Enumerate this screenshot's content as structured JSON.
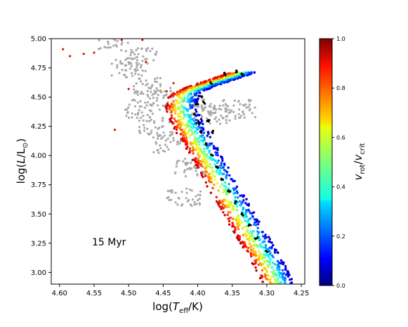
{
  "chart_data": {
    "type": "scatter",
    "title": "",
    "annotation": "15 Myr",
    "xlabel_parts": {
      "prefix": "log(",
      "var": "T",
      "sub": "eff",
      "suffix": "/K)"
    },
    "ylabel_parts": {
      "prefix": "log(",
      "var": "L",
      "slash": "/",
      "L2": "L",
      "sun": "⊙",
      "suffix": ")"
    },
    "colorbar_label_parts": {
      "v1": "v",
      "sub1": "rot",
      "slash": "/",
      "v2": "v",
      "sub2": "crit"
    },
    "x_axis": {
      "reversed": true,
      "lim": [
        4.612,
        4.245
      ],
      "ticks": [
        4.6,
        4.55,
        4.5,
        4.45,
        4.4,
        4.35,
        4.3,
        4.25
      ],
      "tick_labels": [
        "4.60",
        "4.55",
        "4.50",
        "4.45",
        "4.40",
        "4.35",
        "4.30",
        "4.25"
      ]
    },
    "y_axis": {
      "lim": [
        2.9,
        5.0
      ],
      "ticks": [
        3.0,
        3.25,
        3.5,
        3.75,
        4.0,
        4.25,
        4.5,
        4.75,
        5.0
      ],
      "tick_labels": [
        "3.00",
        "3.25",
        "3.50",
        "3.75",
        "4.00",
        "4.25",
        "4.50",
        "4.75",
        "5.00"
      ]
    },
    "colorbar": {
      "range": [
        0.0,
        1.0
      ],
      "ticks": [
        0.0,
        0.2,
        0.4,
        0.6,
        0.8,
        1.0
      ],
      "tick_labels": [
        "0.0",
        "0.2",
        "0.4",
        "0.6",
        "0.8",
        "1.0"
      ],
      "colormap": "jet"
    },
    "series": [
      {
        "role": "main-sequence-band",
        "color_by": "vrot/vcrit",
        "track": [
          [
            4.283,
            2.9
          ],
          [
            4.295,
            3.05
          ],
          [
            4.31,
            3.2
          ],
          [
            4.325,
            3.35
          ],
          [
            4.345,
            3.55
          ],
          [
            4.365,
            3.75
          ],
          [
            4.383,
            3.95
          ],
          [
            4.398,
            4.1
          ],
          [
            4.413,
            4.25
          ],
          [
            4.425,
            4.4
          ],
          [
            4.42,
            4.52
          ],
          [
            4.4,
            4.58
          ],
          [
            4.38,
            4.62
          ],
          [
            4.36,
            4.66
          ],
          [
            4.345,
            4.69
          ],
          [
            4.335,
            4.71
          ]
        ],
        "width_dex": 0.045,
        "vrot_range": [
          0.05,
          0.95
        ]
      },
      {
        "role": "black-track",
        "color": "#000000",
        "points": [
          [
            4.335,
            4.7
          ],
          [
            4.345,
            4.72
          ],
          [
            4.36,
            4.7
          ],
          [
            4.38,
            4.62
          ],
          [
            4.395,
            4.5
          ],
          [
            4.4,
            4.43
          ],
          [
            4.405,
            4.36
          ],
          [
            4.4,
            4.28
          ],
          [
            4.395,
            4.2
          ],
          [
            4.388,
            4.1
          ],
          [
            4.38,
            4.0
          ],
          [
            4.372,
            3.9
          ],
          [
            4.365,
            3.8
          ],
          [
            4.355,
            3.7
          ],
          [
            4.345,
            3.6
          ],
          [
            4.335,
            3.5
          ],
          [
            4.325,
            3.4
          ],
          [
            4.315,
            3.3
          ],
          [
            4.3,
            3.18
          ],
          [
            4.385,
            4.3
          ],
          [
            4.378,
            4.2
          ],
          [
            4.39,
            4.45
          ]
        ]
      },
      {
        "role": "gray-evolved",
        "color": "#a9a9a9",
        "regions": [
          [
            4.52,
            4.98
          ],
          [
            4.48,
            4.85
          ],
          [
            4.5,
            4.75
          ],
          [
            4.47,
            4.6
          ],
          [
            4.45,
            4.5
          ],
          [
            4.48,
            4.4
          ],
          [
            4.46,
            4.25
          ],
          [
            4.44,
            4.1
          ],
          [
            4.41,
            3.9
          ],
          [
            4.4,
            4.4
          ],
          [
            4.37,
            4.35
          ],
          [
            4.34,
            4.4
          ],
          [
            4.42,
            3.65
          ]
        ]
      },
      {
        "role": "red-outliers",
        "color": "#cc2200",
        "points": [
          [
            4.595,
            4.91
          ],
          [
            4.585,
            4.85
          ],
          [
            4.565,
            4.87
          ],
          [
            4.55,
            4.88
          ],
          [
            4.51,
            4.99
          ],
          [
            4.48,
            4.99
          ],
          [
            4.475,
            4.8
          ],
          [
            4.445,
            4.55
          ],
          [
            4.5,
            4.57
          ],
          [
            4.435,
            4.62
          ],
          [
            4.52,
            4.22
          ]
        ]
      }
    ]
  }
}
